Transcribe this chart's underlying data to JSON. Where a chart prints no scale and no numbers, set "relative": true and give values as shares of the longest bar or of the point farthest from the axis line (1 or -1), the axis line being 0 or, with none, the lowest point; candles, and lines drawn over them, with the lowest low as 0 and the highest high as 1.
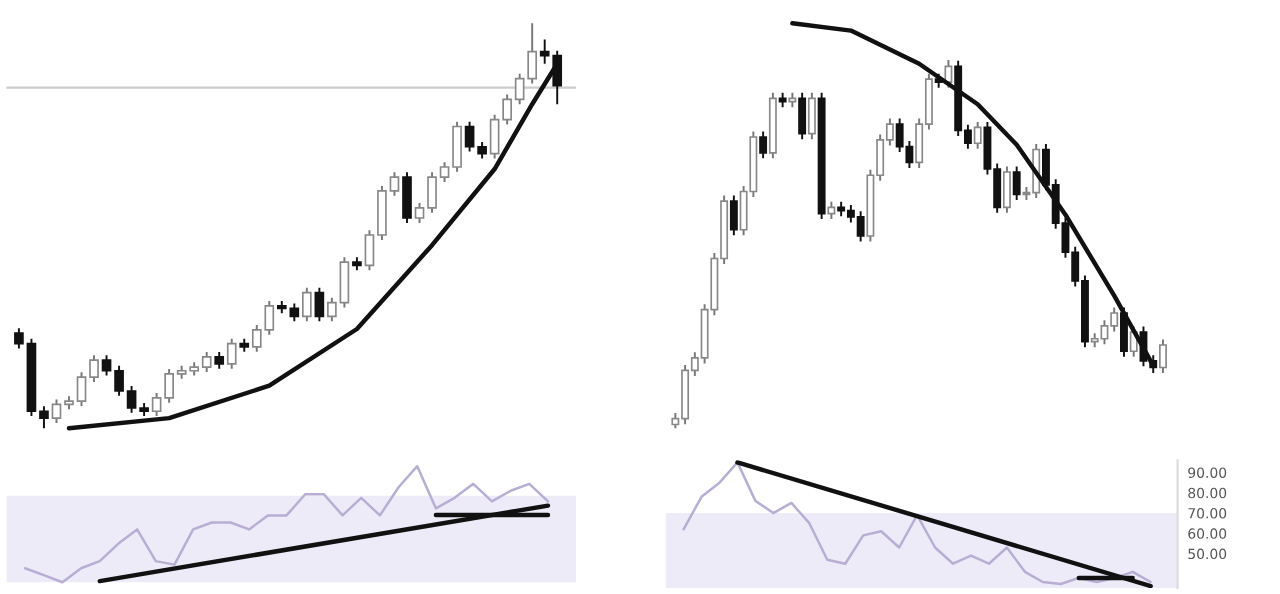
{
  "chart_data": [
    {
      "type": "candlestick",
      "relative": true,
      "categories": [
        null,
        null,
        null,
        null,
        null,
        null,
        null,
        null,
        null,
        null,
        null,
        null,
        null,
        null,
        null,
        null,
        null,
        null,
        null,
        null,
        null,
        null,
        null,
        null,
        null,
        null,
        null,
        null,
        null,
        null,
        null,
        null,
        null,
        null,
        null,
        null,
        null,
        null,
        null,
        null,
        null,
        null,
        null,
        null
      ],
      "ohlc": [
        [
          0.235,
          0.247,
          0.197,
          0.209
        ],
        [
          0.209,
          0.221,
          0.03,
          0.042
        ],
        [
          0.042,
          0.054,
          0.0,
          0.025
        ],
        [
          0.025,
          0.071,
          0.013,
          0.059
        ],
        [
          0.059,
          0.079,
          0.047,
          0.067
        ],
        [
          0.067,
          0.138,
          0.055,
          0.126
        ],
        [
          0.126,
          0.18,
          0.114,
          0.168
        ],
        [
          0.168,
          0.18,
          0.13,
          0.142
        ],
        [
          0.142,
          0.154,
          0.08,
          0.092
        ],
        [
          0.092,
          0.104,
          0.038,
          0.05
        ],
        [
          0.05,
          0.062,
          0.03,
          0.042
        ],
        [
          0.042,
          0.087,
          0.03,
          0.075
        ],
        [
          0.075,
          0.146,
          0.063,
          0.134
        ],
        [
          0.134,
          0.154,
          0.122,
          0.142
        ],
        [
          0.142,
          0.163,
          0.13,
          0.151
        ],
        [
          0.151,
          0.188,
          0.139,
          0.176
        ],
        [
          0.176,
          0.188,
          0.147,
          0.159
        ],
        [
          0.159,
          0.221,
          0.147,
          0.209
        ],
        [
          0.209,
          0.221,
          0.189,
          0.201
        ],
        [
          0.201,
          0.255,
          0.189,
          0.243
        ],
        [
          0.243,
          0.314,
          0.231,
          0.302
        ],
        [
          0.302,
          0.314,
          0.284,
          0.296
        ],
        [
          0.296,
          0.308,
          0.264,
          0.276
        ],
        [
          0.276,
          0.347,
          0.264,
          0.335
        ],
        [
          0.335,
          0.347,
          0.264,
          0.276
        ],
        [
          0.276,
          0.322,
          0.264,
          0.31
        ],
        [
          0.31,
          0.422,
          0.298,
          0.41
        ],
        [
          0.41,
          0.422,
          0.39,
          0.402
        ],
        [
          0.402,
          0.489,
          0.39,
          0.477
        ],
        [
          0.477,
          0.598,
          0.465,
          0.586
        ],
        [
          0.586,
          0.632,
          0.574,
          0.62
        ],
        [
          0.62,
          0.632,
          0.507,
          0.519
        ],
        [
          0.519,
          0.556,
          0.507,
          0.544
        ],
        [
          0.544,
          0.632,
          0.532,
          0.62
        ],
        [
          0.62,
          0.657,
          0.608,
          0.645
        ],
        [
          0.645,
          0.757,
          0.633,
          0.745
        ],
        [
          0.745,
          0.757,
          0.683,
          0.695
        ],
        [
          0.695,
          0.707,
          0.666,
          0.678
        ],
        [
          0.678,
          0.774,
          0.666,
          0.762
        ],
        [
          0.762,
          0.824,
          0.75,
          0.812
        ],
        [
          0.812,
          0.875,
          0.8,
          0.863
        ],
        [
          0.863,
          1.0,
          0.851,
          0.93
        ],
        [
          0.93,
          0.96,
          0.9,
          0.92
        ],
        [
          0.92,
          0.932,
          0.8,
          0.846
        ]
      ],
      "series": [
        {
          "type": "line",
          "color": "#111111",
          "values": [
            null,
            null,
            null,
            null,
            0,
            null,
            null,
            null,
            null,
            null,
            null,
            null,
            0.025,
            null,
            null,
            null,
            null,
            null,
            null,
            null,
            0.105,
            null,
            null,
            null,
            null,
            null,
            null,
            0.245,
            null,
            null,
            null,
            null,
            null,
            0.452,
            null,
            null,
            null,
            null,
            0.64,
            null,
            null,
            0.8,
            null,
            0.9
          ]
        }
      ],
      "ref_lines": [
        {
          "axis": "y",
          "value": 0.841,
          "color": "#cccccc"
        }
      ]
    },
    {
      "type": "candlestick",
      "relative": true,
      "categories": [
        null,
        null,
        null,
        null,
        null,
        null,
        null,
        null,
        null,
        null,
        null,
        null,
        null,
        null,
        null,
        null,
        null,
        null,
        null,
        null,
        null,
        null,
        null,
        null,
        null,
        null,
        null,
        null,
        null,
        null,
        null,
        null,
        null,
        null,
        null,
        null,
        null,
        null,
        null,
        null,
        null,
        null,
        null,
        null,
        null,
        null,
        null,
        null,
        null,
        null,
        null
      ],
      "ohlc": [
        [
          0.01,
          0.041,
          0.0,
          0.026
        ],
        [
          0.026,
          0.172,
          0.011,
          0.157
        ],
        [
          0.157,
          0.206,
          0.142,
          0.191
        ],
        [
          0.191,
          0.337,
          0.176,
          0.322
        ],
        [
          0.322,
          0.476,
          0.307,
          0.461
        ],
        [
          0.461,
          0.632,
          0.446,
          0.617
        ],
        [
          0.617,
          0.632,
          0.524,
          0.539
        ],
        [
          0.539,
          0.658,
          0.524,
          0.643
        ],
        [
          0.643,
          0.806,
          0.628,
          0.791
        ],
        [
          0.791,
          0.806,
          0.733,
          0.748
        ],
        [
          0.748,
          0.911,
          0.733,
          0.896
        ],
        [
          0.896,
          0.911,
          0.872,
          0.887
        ],
        [
          0.887,
          0.911,
          0.872,
          0.896
        ],
        [
          0.896,
          0.911,
          0.785,
          0.8
        ],
        [
          0.8,
          0.911,
          0.785,
          0.896
        ],
        [
          0.896,
          0.911,
          0.568,
          0.583
        ],
        [
          0.583,
          0.615,
          0.568,
          0.6
        ],
        [
          0.6,
          0.615,
          0.576,
          0.591
        ],
        [
          0.591,
          0.606,
          0.559,
          0.574
        ],
        [
          0.574,
          0.589,
          0.507,
          0.522
        ],
        [
          0.522,
          0.702,
          0.507,
          0.687
        ],
        [
          0.687,
          0.798,
          0.672,
          0.783
        ],
        [
          0.783,
          0.841,
          0.768,
          0.826
        ],
        [
          0.826,
          0.841,
          0.75,
          0.765
        ],
        [
          0.765,
          0.78,
          0.707,
          0.722
        ],
        [
          0.722,
          0.841,
          0.707,
          0.826
        ],
        [
          0.826,
          0.963,
          0.811,
          0.948
        ],
        [
          0.948,
          0.963,
          0.925,
          0.94
        ],
        [
          0.94,
          1.0,
          0.925,
          0.983
        ],
        [
          0.983,
          0.998,
          0.794,
          0.809
        ],
        [
          0.809,
          0.824,
          0.759,
          0.774
        ],
        [
          0.774,
          0.832,
          0.759,
          0.817
        ],
        [
          0.817,
          0.832,
          0.689,
          0.704
        ],
        [
          0.704,
          0.719,
          0.585,
          0.6
        ],
        [
          0.6,
          0.711,
          0.585,
          0.696
        ],
        [
          0.696,
          0.711,
          0.62,
          0.635
        ],
        [
          0.635,
          0.655,
          0.62,
          0.64
        ],
        [
          0.64,
          0.772,
          0.625,
          0.757
        ],
        [
          0.757,
          0.772,
          0.646,
          0.661
        ],
        [
          0.661,
          0.676,
          0.542,
          0.557
        ],
        [
          0.557,
          0.572,
          0.463,
          0.478
        ],
        [
          0.478,
          0.493,
          0.385,
          0.4
        ],
        [
          0.4,
          0.415,
          0.22,
          0.235
        ],
        [
          0.235,
          0.258,
          0.22,
          0.243
        ],
        [
          0.243,
          0.293,
          0.228,
          0.278
        ],
        [
          0.278,
          0.328,
          0.263,
          0.313
        ],
        [
          0.313,
          0.328,
          0.194,
          0.209
        ],
        [
          0.209,
          0.276,
          0.194,
          0.261
        ],
        [
          0.261,
          0.276,
          0.168,
          0.183
        ],
        [
          0.183,
          0.198,
          0.15,
          0.165
        ],
        [
          0.165,
          0.241,
          0.15,
          0.226
        ]
      ],
      "series": [
        {
          "type": "line",
          "color": "#111111",
          "values": [
            null,
            null,
            null,
            null,
            null,
            null,
            null,
            null,
            null,
            null,
            null,
            null,
            1.1,
            null,
            null,
            null,
            null,
            null,
            1.08,
            null,
            null,
            null,
            null,
            null,
            null,
            0.99,
            null,
            null,
            null,
            null,
            null,
            0.88,
            null,
            null,
            null,
            0.77,
            null,
            null,
            null,
            null,
            0.58,
            null,
            null,
            null,
            null,
            0.36,
            null,
            null,
            null,
            0.17,
            null
          ]
        }
      ]
    },
    {
      "type": "line",
      "relative": true,
      "categories": [
        null,
        null,
        null,
        null,
        null,
        null,
        null,
        null,
        null,
        null,
        null,
        null,
        null,
        null,
        null,
        null,
        null,
        null,
        null,
        null,
        null,
        null,
        null,
        null,
        null,
        null,
        null,
        null,
        null
      ],
      "series": [
        {
          "type": "line",
          "color": "#b8aed4",
          "values": [
            0.121,
            0.061,
            0,
            0.121,
            0.182,
            0.333,
            0.455,
            0.182,
            0.152,
            0.455,
            0.515,
            0.515,
            0.455,
            0.576,
            0.576,
            0.758,
            0.758,
            0.576,
            0.727,
            0.576,
            0.818,
            1.0,
            0.636,
            0.727,
            0.848,
            0.697,
            0.788,
            0.848,
            0.697
          ]
        },
        {
          "type": "line",
          "color": "#111111",
          "values": [
            null,
            null,
            null,
            null,
            0.01,
            null,
            null,
            null,
            null,
            null,
            null,
            null,
            null,
            null,
            null,
            null,
            null,
            null,
            null,
            null,
            null,
            null,
            null,
            null,
            null,
            null,
            null,
            null,
            0.66
          ]
        },
        {
          "type": "line",
          "color": "#111111",
          "values": [
            null,
            null,
            null,
            null,
            null,
            null,
            null,
            null,
            null,
            null,
            null,
            null,
            null,
            null,
            null,
            null,
            null,
            null,
            null,
            null,
            null,
            null,
            0.58,
            null,
            null,
            null,
            null,
            null,
            0.58
          ]
        }
      ],
      "bands": [
        {
          "axis": "y",
          "from": 0,
          "to": 0.745,
          "color": "#eeebf8"
        }
      ]
    },
    {
      "type": "line",
      "categories": [
        null,
        null,
        null,
        null,
        null,
        null,
        null,
        null,
        null,
        null,
        null,
        null,
        null,
        null,
        null,
        null,
        null,
        null,
        null,
        null,
        null,
        null,
        null,
        null,
        null,
        null,
        null
      ],
      "ylim": [
        33,
        96
      ],
      "yticks": [
        {
          "value": 50,
          "label": "50.00"
        },
        {
          "value": 60,
          "label": "60.00"
        },
        {
          "value": 70,
          "label": "70.00"
        },
        {
          "value": 80,
          "label": "80.00"
        },
        {
          "value": 90,
          "label": "90.00"
        }
      ],
      "tick_labels": "y",
      "series": [
        {
          "type": "line",
          "color": "#b8aed4",
          "values": [
            62,
            78,
            85,
            95,
            76,
            70,
            75,
            65,
            47,
            45,
            59,
            61,
            53,
            69,
            53,
            45,
            49,
            45,
            53,
            41,
            36,
            35,
            38,
            36,
            38,
            41,
            36
          ]
        },
        {
          "type": "line",
          "color": "#111111",
          "values": [
            null,
            null,
            null,
            95,
            null,
            null,
            null,
            null,
            null,
            null,
            null,
            null,
            null,
            null,
            null,
            null,
            null,
            null,
            null,
            null,
            null,
            null,
            null,
            null,
            null,
            null,
            34
          ]
        },
        {
          "type": "line",
          "color": "#111111",
          "values": [
            null,
            null,
            null,
            null,
            null,
            null,
            null,
            null,
            null,
            null,
            null,
            null,
            null,
            null,
            null,
            null,
            null,
            null,
            null,
            null,
            null,
            null,
            38,
            null,
            null,
            38,
            null
          ]
        }
      ],
      "bands": [
        {
          "axis": "y",
          "from": 33,
          "to": 70,
          "color": "#eeebf8"
        }
      ]
    }
  ]
}
